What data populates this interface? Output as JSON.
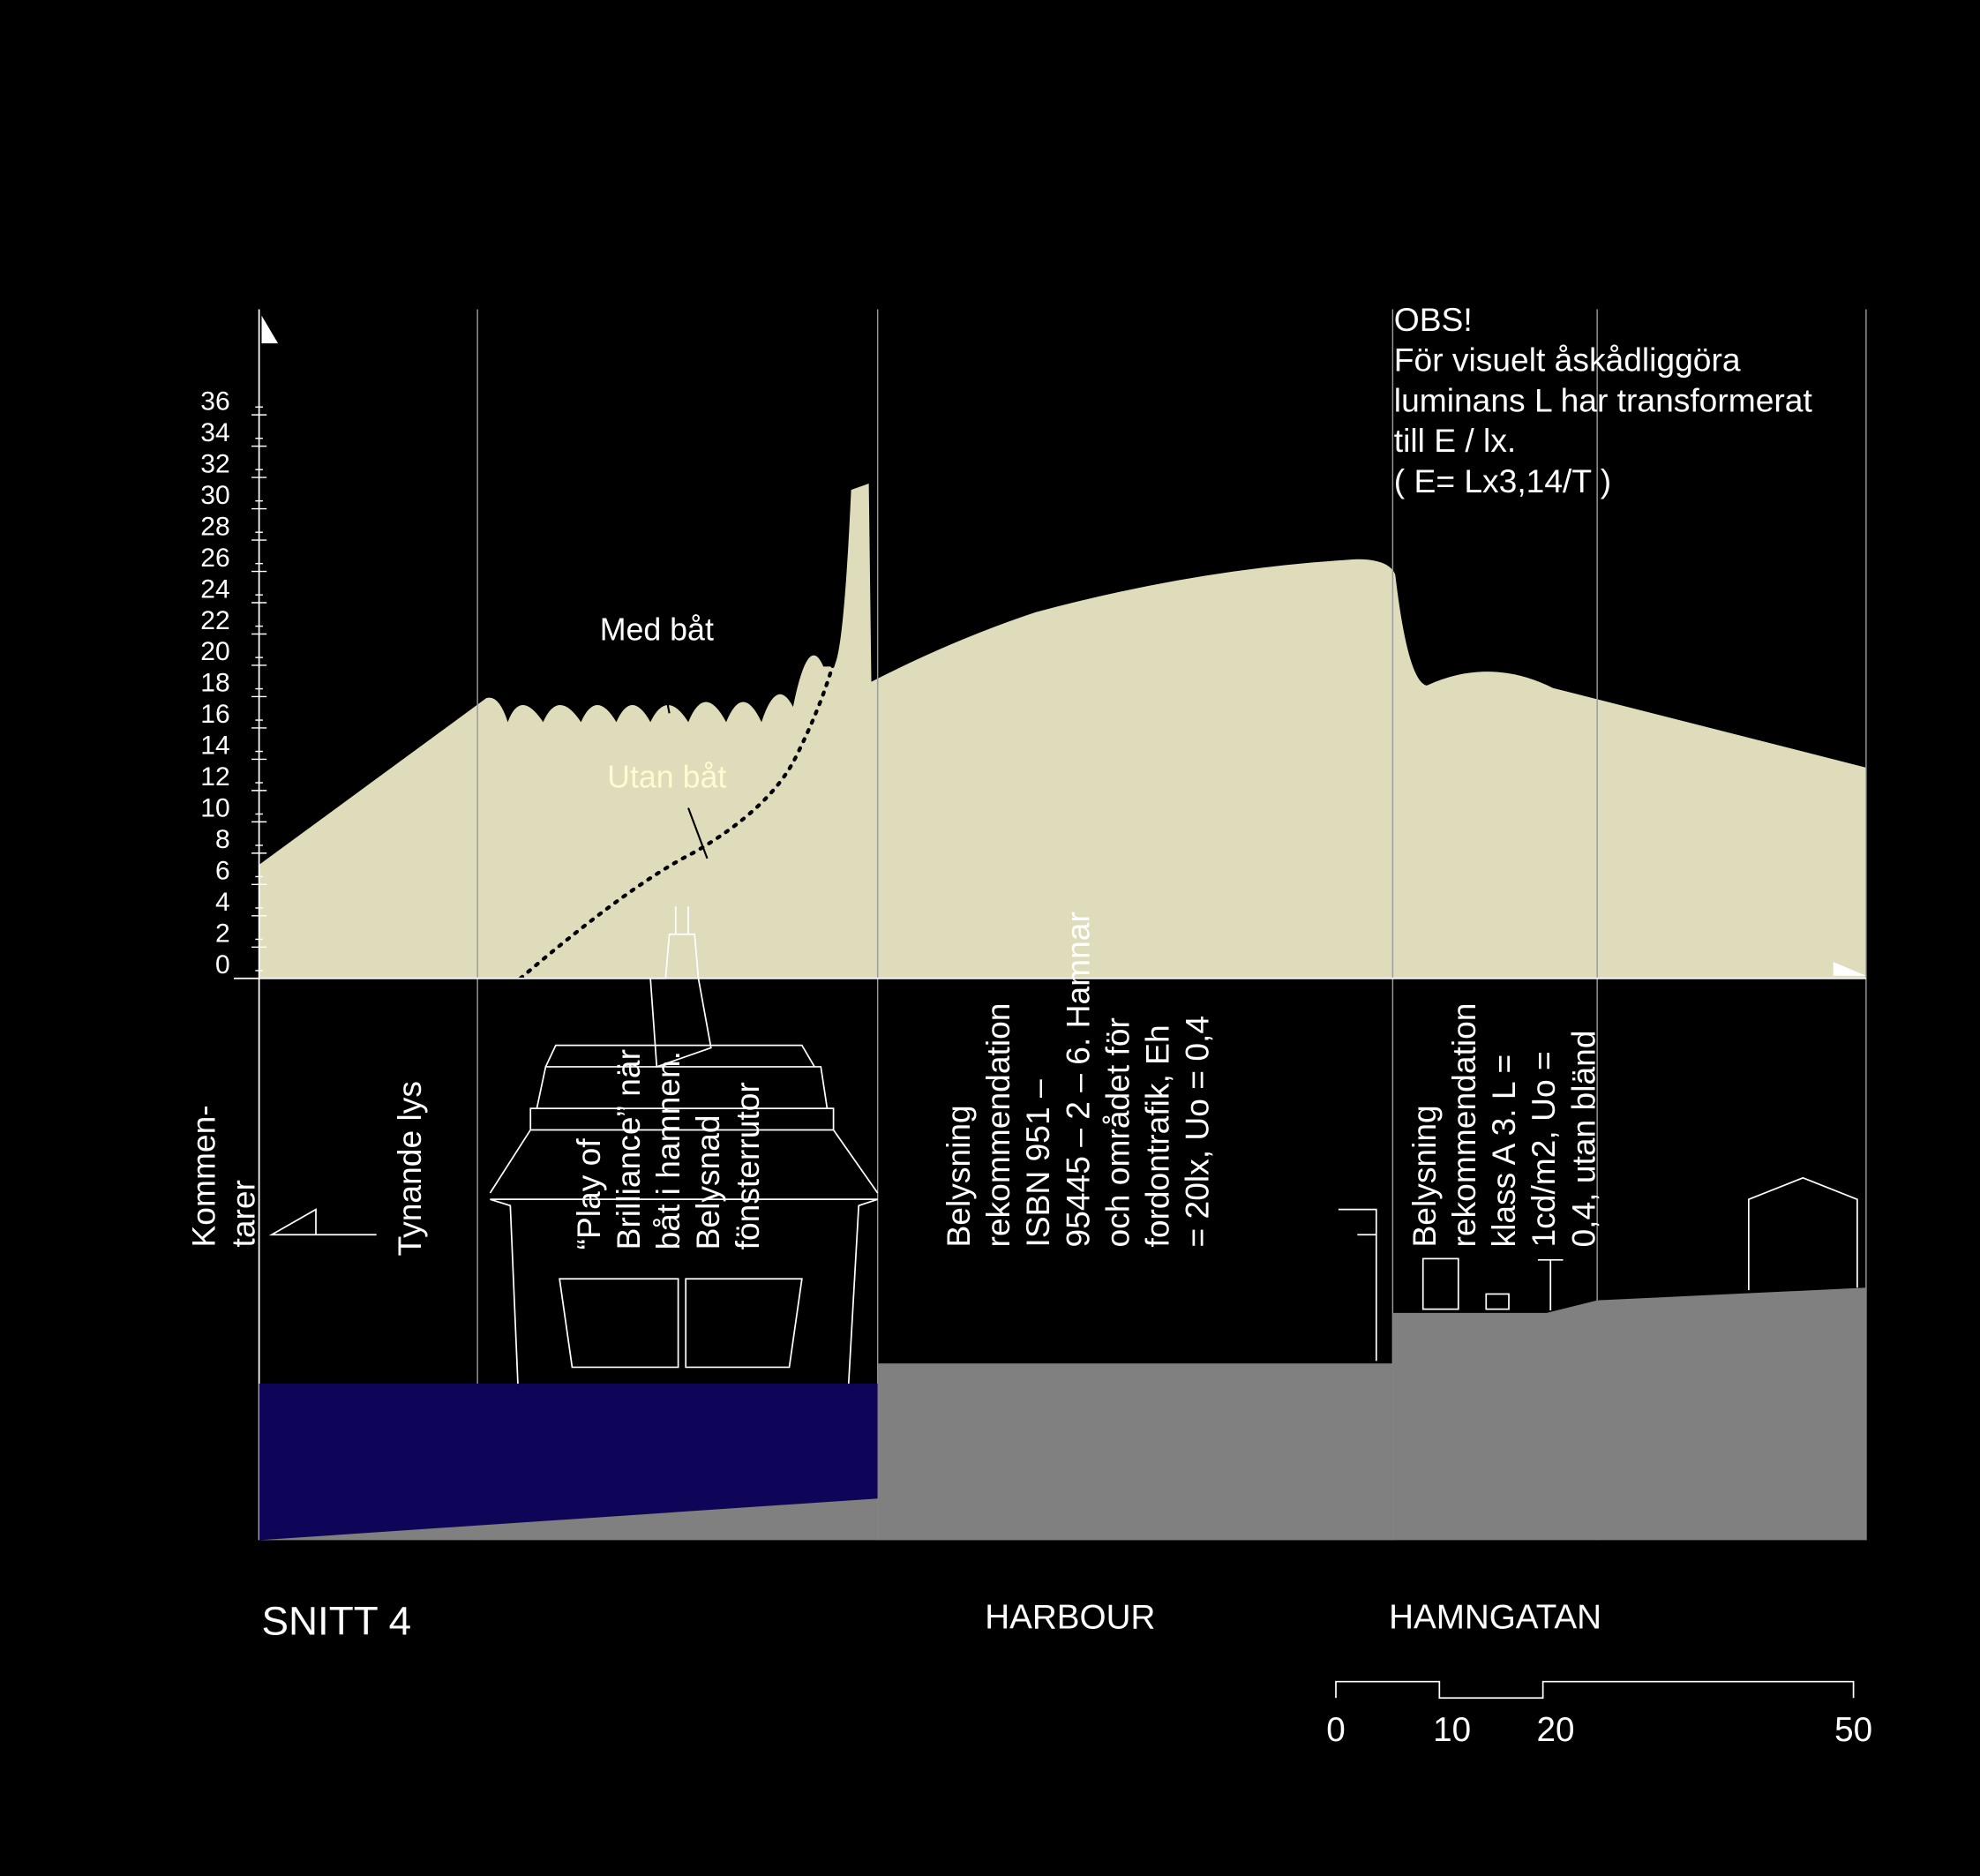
{
  "y_axis": {
    "ticks": [
      0,
      2,
      4,
      6,
      8,
      10,
      12,
      14,
      16,
      18,
      20,
      22,
      24,
      26,
      28,
      30,
      32,
      34,
      36
    ]
  },
  "curve_labels": {
    "with_boat": "Med båt",
    "without_boat": "Utan båt"
  },
  "note": [
    "OBS!",
    "För visuelt åskådliggöra",
    "luminans L har transformerat",
    "till E / lx.",
    "( E=  Lx3,14/T )"
  ],
  "comments": {
    "heading": [
      "Kommen-",
      "tarer"
    ],
    "fading": "Tynande lys",
    "ship": [
      "“Play of",
      "Brilliance” när",
      "båt i hamnen.",
      "Belysnad",
      "fönsterrutor"
    ],
    "harbour": [
      "Belysning",
      "rekommendation",
      "ISBN 951 –",
      "95445 – 2 – 6. Hamnar",
      "och området för",
      "fordontrafik, Eh",
      "= 20lx, Uo = 0,4"
    ],
    "street": [
      "Belysning",
      "rekommendation",
      "klass A 3. L =",
      "1cd/m2, Uo =",
      "0,4, utan bländ"
    ]
  },
  "sections": {
    "title": "SNITT 4",
    "harbour": "HARBOUR",
    "street": "HAMNGATAN"
  },
  "scale": [
    0,
    10,
    20,
    50
  ]
}
